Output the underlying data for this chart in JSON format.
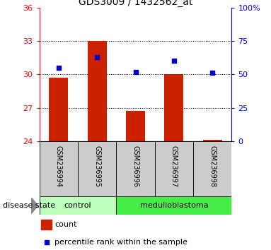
{
  "title": "GDS3009 / 1432562_at",
  "samples": [
    "GSM236994",
    "GSM236995",
    "GSM236996",
    "GSM236997",
    "GSM236998"
  ],
  "bar_values": [
    29.7,
    33.0,
    26.7,
    30.0,
    24.1
  ],
  "bar_base": 24,
  "percentile_values": [
    55,
    63,
    52,
    60,
    51
  ],
  "ylim_left": [
    24,
    36
  ],
  "ylim_right": [
    0,
    100
  ],
  "yticks_left": [
    24,
    27,
    30,
    33,
    36
  ],
  "yticks_right": [
    0,
    25,
    50,
    75,
    100
  ],
  "ytick_labels_right": [
    "0",
    "25",
    "50",
    "75",
    "100%"
  ],
  "bar_color": "#cc2200",
  "dot_color": "#0000cc",
  "disease_groups": [
    {
      "label": "control",
      "samples": [
        0,
        1
      ],
      "color": "#bbffbb"
    },
    {
      "label": "medulloblastoma",
      "samples": [
        2,
        3,
        4
      ],
      "color": "#44ee44"
    }
  ],
  "legend_count_color": "#cc2200",
  "legend_pct_color": "#0000cc",
  "disease_state_label": "disease state",
  "plot_bg": "#ffffff",
  "sample_bg": "#cccccc"
}
